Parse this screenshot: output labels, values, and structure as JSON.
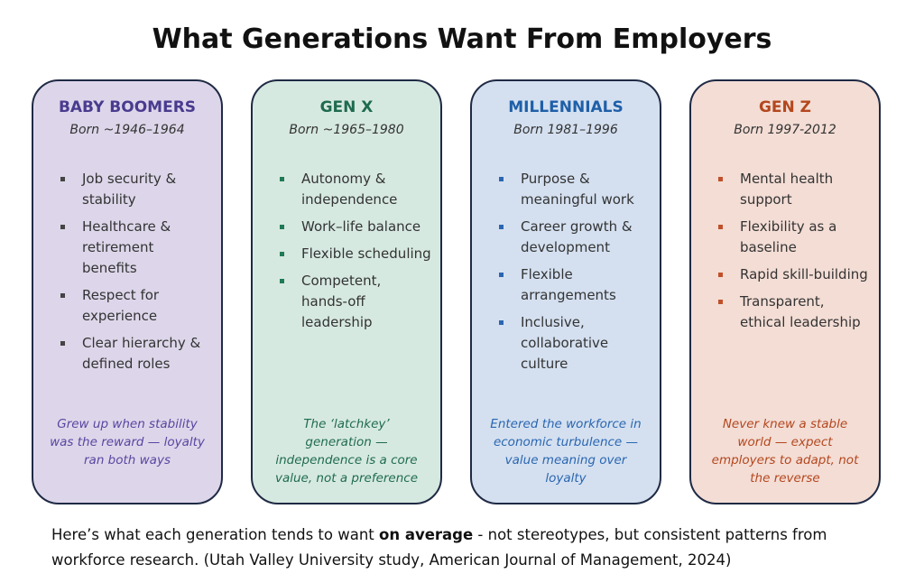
{
  "title": "What Generations Want From Employers",
  "cards": [
    {
      "heading": "BABY BOOMERS",
      "born": "Born ~1946–1964",
      "items": [
        "Job security & stability",
        "Healthcare & retirement benefits",
        "Respect for experience",
        "Clear hierarchy & defined roles"
      ],
      "note": "Grew up when stability was the reward — loyalty ran both ways"
    },
    {
      "heading": "GEN X",
      "born": "Born ~1965–1980",
      "items": [
        "Autonomy & independence",
        "Work–life balance",
        "Flexible scheduling",
        "Competent, hands-off leadership"
      ],
      "note": "The ‘latchkey’ generation — independence is a core value, not a preference"
    },
    {
      "heading": "MILLENNIALS",
      "born": "Born 1981–1996",
      "items": [
        "Purpose & meaningful work",
        "Career growth & development",
        "Flexible arrangements",
        "Inclusive, collaborative culture"
      ],
      "note": "Entered the workforce in economic turbulence — value meaning over loyalty"
    },
    {
      "heading": "GEN Z",
      "born": "Born 1997-2012",
      "items": [
        "Mental health support",
        "Flexibility as a baseline",
        "Rapid skill-building",
        "Transparent, ethical leadership"
      ],
      "note": "Never knew a stable world — expect employers to adapt, not the reverse"
    }
  ],
  "footer": {
    "before": "Here’s what each generation tends to want ",
    "bold": "on average",
    "after": " - not stereotypes, but consistent patterns from workforce research. (Utah Valley University study, American Journal of Management, 2024)"
  }
}
